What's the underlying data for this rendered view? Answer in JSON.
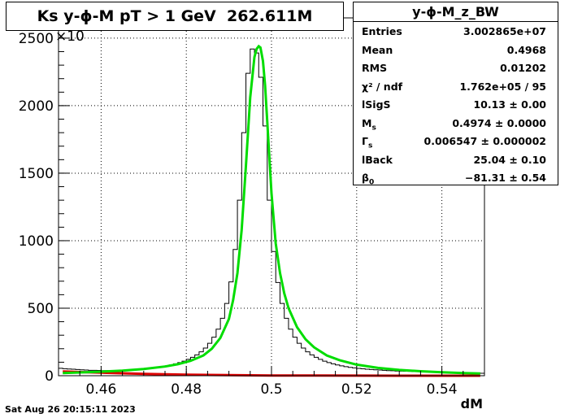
{
  "title": "Ks y-ϕ-M pT > 1 GeV  262.611M",
  "stats": {
    "name": "y-ϕ-M_z_BW",
    "rows": [
      {
        "label": "Entries",
        "value": "3.002865e+07"
      },
      {
        "label": "Mean",
        "value": "0.4968"
      },
      {
        "label": "RMS",
        "value": "0.01202"
      },
      {
        "label": "χ² / ndf",
        "value": "1.762e+05 / 95"
      },
      {
        "label": "lSigS",
        "value": "10.13 ± 0.00"
      },
      {
        "label": "M_s",
        "value": "0.4974 ± 0.0000"
      },
      {
        "label": "Γ_s",
        "value": "0.006547 ± 0.000002"
      },
      {
        "label": "lBack",
        "value": "25.04 ± 0.10"
      },
      {
        "label": "β_0",
        "value": "−81.31 ± 0.54"
      }
    ]
  },
  "footer_date": "Sat Aug 26 20:15:11 2023",
  "chart_data": {
    "type": "bar",
    "title": "Ks y-ϕ-M pT > 1 GeV  262.611M",
    "xlabel": "dM",
    "ylabel": "",
    "y_multiplier_label": "×10",
    "xlim": [
      0.45,
      0.55
    ],
    "ylim": [
      0,
      2650
    ],
    "x_ticks": [
      "0.46",
      "0.48",
      "0.5",
      "0.52",
      "0.54"
    ],
    "y_ticks": [
      "0",
      "500",
      "1000",
      "1500",
      "2000",
      "2500"
    ],
    "grid": true,
    "histogram": {
      "x": [
        0.45,
        0.451,
        0.452,
        0.453,
        0.454,
        0.455,
        0.456,
        0.457,
        0.458,
        0.459,
        0.46,
        0.461,
        0.462,
        0.463,
        0.464,
        0.465,
        0.466,
        0.467,
        0.468,
        0.469,
        0.47,
        0.471,
        0.472,
        0.473,
        0.474,
        0.475,
        0.476,
        0.477,
        0.478,
        0.479,
        0.48,
        0.481,
        0.482,
        0.483,
        0.484,
        0.485,
        0.486,
        0.487,
        0.488,
        0.489,
        0.49,
        0.491,
        0.492,
        0.493,
        0.494,
        0.495,
        0.496,
        0.497,
        0.498,
        0.499,
        0.5,
        0.501,
        0.502,
        0.503,
        0.504,
        0.505,
        0.506,
        0.507,
        0.508,
        0.509,
        0.51,
        0.511,
        0.512,
        0.513,
        0.514,
        0.515,
        0.516,
        0.517,
        0.518,
        0.519,
        0.52,
        0.521,
        0.522,
        0.523,
        0.524,
        0.525,
        0.526,
        0.527,
        0.528,
        0.529,
        0.53,
        0.531,
        0.532,
        0.533,
        0.534,
        0.535,
        0.536,
        0.537,
        0.538,
        0.539,
        0.54,
        0.541,
        0.542,
        0.543,
        0.544,
        0.545,
        0.546,
        0.547,
        0.548,
        0.549
      ],
      "values": [
        55,
        52,
        50,
        48,
        46,
        44,
        42,
        40,
        40,
        39,
        38,
        38,
        38,
        39,
        40,
        41,
        42,
        44,
        46,
        48,
        51,
        54,
        58,
        62,
        67,
        73,
        80,
        88,
        97,
        108,
        121,
        136,
        154,
        177,
        205,
        240,
        285,
        345,
        425,
        535,
        695,
        935,
        1300,
        1800,
        2240,
        2420,
        2390,
        2210,
        1850,
        1300,
        920,
        690,
        535,
        425,
        345,
        285,
        240,
        205,
        177,
        154,
        136,
        121,
        108,
        97,
        88,
        80,
        73,
        67,
        62,
        58,
        54,
        51,
        48,
        46,
        44,
        42,
        40,
        38,
        37,
        35,
        34,
        33,
        32,
        31,
        30,
        29,
        28,
        27,
        26,
        25,
        24,
        23,
        23,
        22,
        21,
        20,
        20,
        19,
        19,
        18
      ]
    },
    "fit_function": {
      "color": "#00dd00",
      "x": [
        0.451,
        0.455,
        0.46,
        0.465,
        0.47,
        0.475,
        0.478,
        0.481,
        0.484,
        0.486,
        0.488,
        0.49,
        0.491,
        0.492,
        0.493,
        0.494,
        0.495,
        0.496,
        0.4965,
        0.497,
        0.4974,
        0.498,
        0.4985,
        0.499,
        0.5,
        0.501,
        0.502,
        0.503,
        0.504,
        0.506,
        0.508,
        0.51,
        0.513,
        0.516,
        0.52,
        0.525,
        0.53,
        0.535,
        0.54,
        0.545,
        0.549
      ],
      "y": [
        20,
        24,
        30,
        38,
        50,
        68,
        85,
        110,
        150,
        200,
        280,
        420,
        560,
        760,
        1080,
        1560,
        2060,
        2360,
        2420,
        2440,
        2430,
        2330,
        2150,
        1880,
        1350,
        980,
        760,
        610,
        500,
        360,
        270,
        210,
        150,
        115,
        82,
        58,
        43,
        33,
        26,
        20,
        16
      ]
    },
    "background_function": {
      "color": "#dd0000",
      "x": [
        0.451,
        0.455,
        0.46,
        0.47,
        0.48,
        0.49,
        0.5,
        0.51,
        0.52,
        0.53,
        0.54,
        0.549
      ],
      "y": [
        32,
        27,
        22,
        14,
        8,
        4,
        2,
        1,
        0.5,
        0,
        0,
        0
      ]
    }
  }
}
